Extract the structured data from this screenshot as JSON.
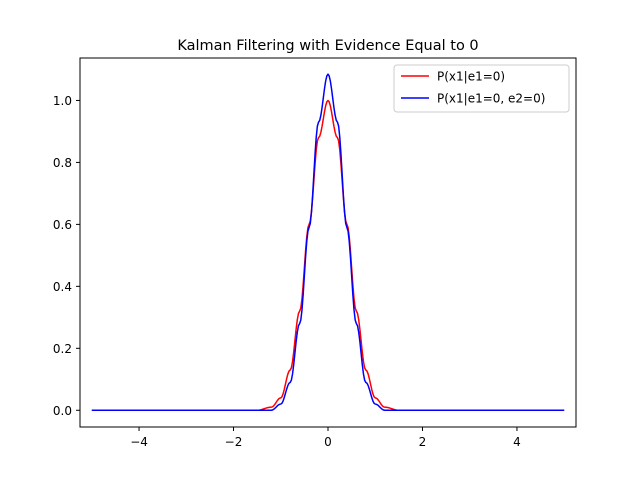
{
  "chart_data": {
    "type": "line",
    "title": "Kalman Filtering with Evidence Equal to 0",
    "xlabel": "",
    "ylabel": "",
    "xlim": [
      -5.25,
      5.25
    ],
    "ylim": [
      -0.054,
      1.137
    ],
    "xticks": [
      -4,
      -2,
      0,
      2,
      4
    ],
    "xtick_labels": [
      "−4",
      "−2",
      "0",
      "2",
      "4"
    ],
    "yticks": [
      0.0,
      0.2,
      0.4,
      0.6,
      0.8,
      1.0
    ],
    "ytick_labels": [
      "0.0",
      "0.2",
      "0.4",
      "0.6",
      "0.8",
      "1.0"
    ],
    "grid": false,
    "legend_position": "top-right",
    "x_range": [
      -5,
      5
    ],
    "series": [
      {
        "name": "P(x1|e1=0)",
        "color": "#ff0000",
        "x": [
          -5,
          -1.5,
          -1.2,
          -1.0,
          -0.8,
          -0.6,
          -0.4,
          -0.2,
          0,
          0.2,
          0.4,
          0.6,
          0.8,
          1.0,
          1.2,
          1.5,
          5
        ],
        "y": [
          0.0,
          0.0,
          0.01,
          0.04,
          0.13,
          0.32,
          0.6,
          0.88,
          1.0,
          0.88,
          0.6,
          0.32,
          0.13,
          0.04,
          0.01,
          0.0,
          0.0
        ]
      },
      {
        "name": "P(x1|e1=0, e2=0)",
        "color": "#0000ff",
        "x": [
          -5,
          -1.5,
          -1.2,
          -1.0,
          -0.8,
          -0.6,
          -0.4,
          -0.2,
          0,
          0.2,
          0.4,
          0.6,
          0.8,
          1.0,
          1.2,
          1.5,
          5
        ],
        "y": [
          0.0,
          0.0,
          0.0,
          0.02,
          0.09,
          0.28,
          0.59,
          0.93,
          1.085,
          0.93,
          0.59,
          0.28,
          0.09,
          0.02,
          0.0,
          0.0,
          0.0
        ]
      }
    ]
  }
}
